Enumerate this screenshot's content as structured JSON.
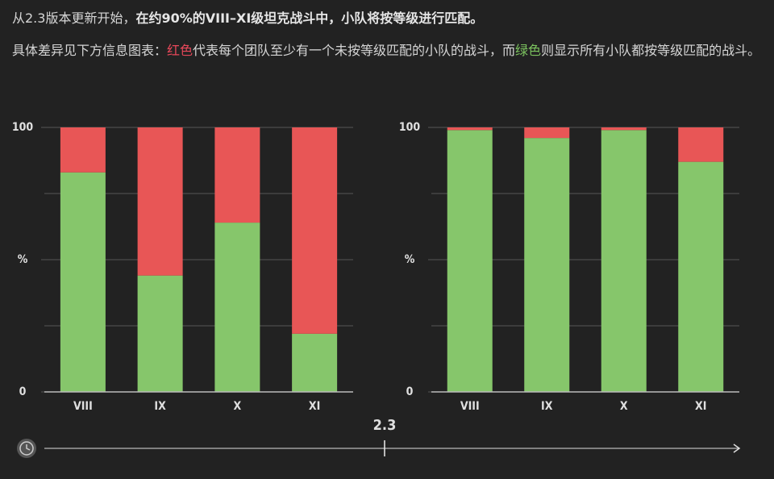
{
  "intro": {
    "line1": "从2.3版本更新开始，",
    "line1_bold": "在约90%的VIII–XI级坦克战斗中，小队将按等级进行匹配。",
    "line2_a": "具体差异见下方信息图表：",
    "line2_red": "红色",
    "line2_b": "代表每个团队至少有一个未按等级匹配的小队的战斗，而",
    "line2_green": "绿色",
    "line2_c": "则显示所有小队都按等级匹配的战斗。"
  },
  "chart_data": [
    {
      "type": "stacked-bar",
      "categories": [
        "VIII",
        "IX",
        "X",
        "XI"
      ],
      "series": [
        {
          "color": "#86c66b",
          "values": [
            83,
            44,
            64,
            22
          ]
        },
        {
          "color": "#e85656",
          "values": [
            17,
            56,
            36,
            78
          ]
        }
      ],
      "ylim": [
        0,
        100
      ],
      "yticks": [
        0,
        {
          "value": 50,
          "label": "%"
        },
        100
      ],
      "ygrid": [
        25,
        50,
        75,
        100
      ]
    },
    {
      "type": "stacked-bar",
      "categories": [
        "VIII",
        "IX",
        "X",
        "XI"
      ],
      "series": [
        {
          "color": "#86c66b",
          "values": [
            99,
            96,
            99,
            87
          ]
        },
        {
          "color": "#e85656",
          "values": [
            1,
            4,
            1,
            13
          ]
        }
      ],
      "ylim": [
        0,
        100
      ],
      "yticks": [
        0,
        {
          "value": 50,
          "label": "%"
        },
        100
      ],
      "ygrid": [
        25,
        50,
        75,
        100
      ]
    }
  ],
  "timeline": {
    "label": "2.3"
  }
}
